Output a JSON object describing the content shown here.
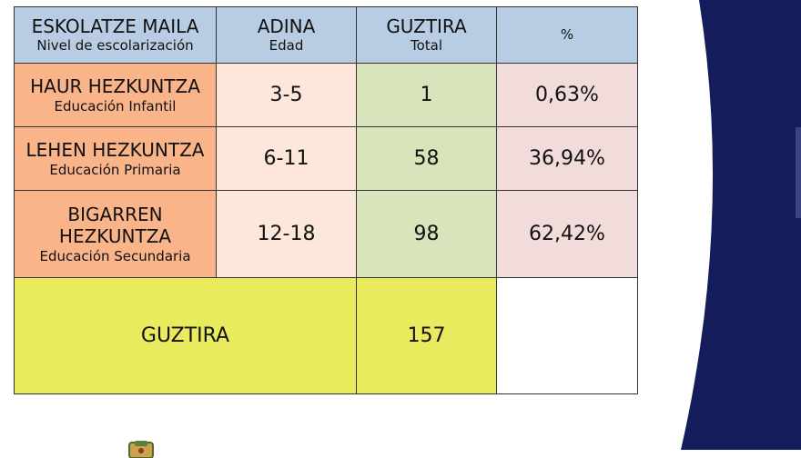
{
  "table": {
    "header": {
      "level": {
        "main": "ESKOLATZE MAILA",
        "sub": "Nivel de escolarización"
      },
      "age": {
        "main": "ADINA",
        "sub": "Edad"
      },
      "total": {
        "main": "GUZTIRA",
        "sub": "Total"
      },
      "percent": {
        "main": "%"
      }
    },
    "rows": [
      {
        "level_main": "HAUR HEZKUNTZA",
        "level_sub": "Educación Infantil",
        "age": "3-5",
        "total": "1",
        "percent": "0,63%"
      },
      {
        "level_main": "LEHEN HEZKUNTZA",
        "level_sub": "Educación Primaria",
        "age": "6-11",
        "total": "58",
        "percent": "36,94%"
      },
      {
        "level_main": "BIGARREN HEZKUNTZA",
        "level_sub": "Educación Secundaria",
        "age": "12-18",
        "total": "98",
        "percent": "62,42%"
      }
    ],
    "summary": {
      "label": "GUZTIRA",
      "total": "157"
    }
  },
  "colors": {
    "header": "#b8cce4",
    "level": "#f9b48a",
    "age": "#fde7da",
    "total": "#d7e4bc",
    "percent": "#f2dcdb",
    "summary": "#e9eb5e",
    "decor_navy": "#141c5c"
  },
  "icons": {
    "logo": "coat-of-arms-icon"
  }
}
